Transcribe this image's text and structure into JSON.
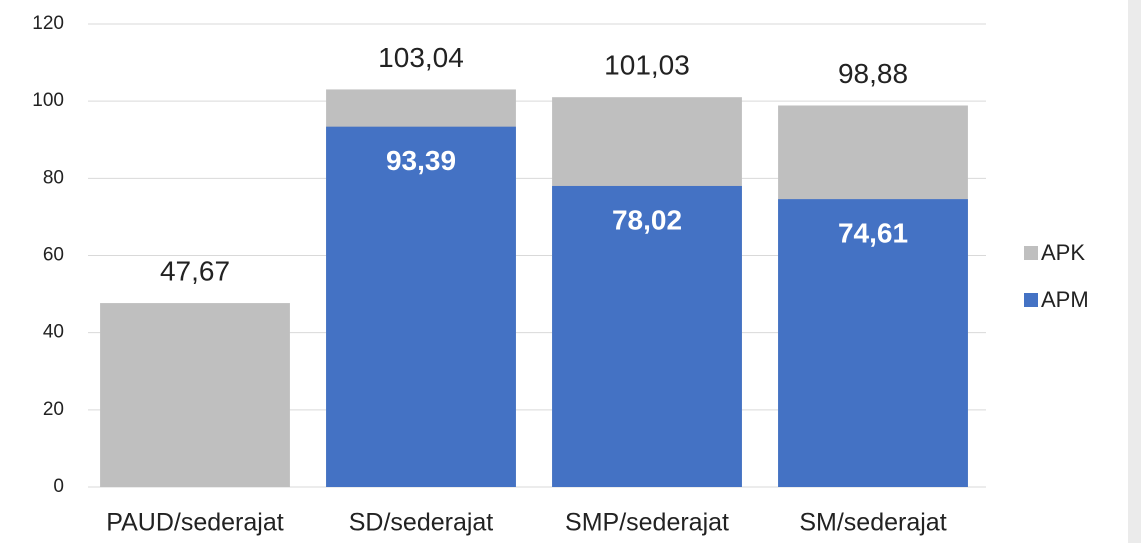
{
  "chart_data": {
    "type": "bar",
    "barmode": "overlay",
    "categories": [
      "PAUD/sederajat",
      "SD/sederajat",
      "SMP/sederajat",
      "SM/sederajat"
    ],
    "series": [
      {
        "name": "APK",
        "color": "#bfbfbf",
        "values": [
          47.67,
          103.04,
          101.03,
          98.88
        ],
        "value_labels": [
          "47,67",
          "103,04",
          "101,03",
          "98,88"
        ]
      },
      {
        "name": "APM",
        "color": "#4472c4",
        "values": [
          null,
          93.39,
          78.02,
          74.61
        ],
        "value_labels": [
          null,
          "93,39",
          "78,02",
          "74,61"
        ]
      }
    ],
    "ylim": [
      0,
      120
    ],
    "yticks": [
      0,
      20,
      40,
      60,
      80,
      100,
      120
    ],
    "grid": true,
    "legend": "right"
  }
}
